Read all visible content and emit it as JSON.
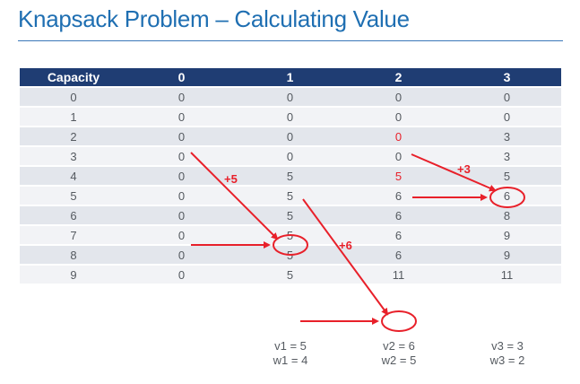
{
  "title": "Knapsack Problem – Calculating Value",
  "table": {
    "headers": [
      "Capacity",
      "0",
      "1",
      "2",
      "3"
    ],
    "rows": [
      [
        "0",
        "0",
        "0",
        "0",
        "0"
      ],
      [
        "1",
        "0",
        "0",
        "0",
        "0"
      ],
      [
        "2",
        "0",
        "0",
        "0",
        "3"
      ],
      [
        "3",
        "0",
        "0",
        "0",
        "3"
      ],
      [
        "4",
        "0",
        "5",
        "5",
        "5"
      ],
      [
        "5",
        "0",
        "5",
        "6",
        "6"
      ],
      [
        "6",
        "0",
        "5",
        "6",
        "8"
      ],
      [
        "7",
        "0",
        "5",
        "6",
        "9"
      ],
      [
        "8",
        "0",
        "5",
        "6",
        "9"
      ],
      [
        "9",
        "0",
        "5",
        "11",
        "11"
      ]
    ],
    "highlighted_red_cells": [
      [
        2,
        3
      ],
      [
        4,
        3
      ]
    ]
  },
  "annotations": {
    "plus5": "+5",
    "plus6": "+6",
    "plus3": "+3"
  },
  "items": [
    {
      "v": "v1 = 5",
      "w": "w1 = 4"
    },
    {
      "v": "v2 = 6",
      "w": "w2 = 5"
    },
    {
      "v": "v3 = 3",
      "w": "w3 = 2"
    }
  ],
  "colors": {
    "title": "#1f6fb2",
    "header_bg": "#1f3d73",
    "row_odd": "#e3e6ec",
    "row_even": "#f2f3f6",
    "arrow": "#e8202a"
  }
}
